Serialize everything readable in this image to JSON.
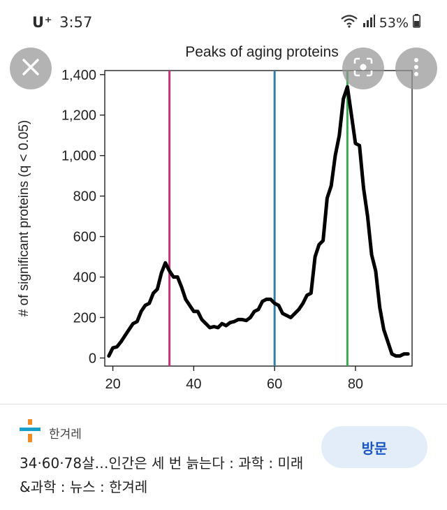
{
  "status_bar": {
    "carrier": "U⁺",
    "time": "3:57",
    "battery": "53%"
  },
  "icons": {
    "close": "close-icon",
    "lens": "lens-search-icon",
    "more": "more-vert-icon",
    "wifi": "wifi-icon",
    "signal": "signal-icon",
    "battery": "battery-icon",
    "source_logo": "hani-logo-icon"
  },
  "source": {
    "name": "한겨레"
  },
  "article": {
    "title": "34·60·78살…인간은 세 번 늙는다 : 과학 : 미래&과학 : 뉴스 : 한겨레"
  },
  "visit_button": {
    "label": "방문"
  },
  "colors": {
    "magenta_line": "#c4317f",
    "blue_line": "#2f7fa8",
    "green_line": "#3aa850",
    "visit_bg": "#e3ecf9",
    "visit_text": "#1a56c4"
  },
  "chart_data": {
    "type": "line",
    "title": "Peaks of aging proteins",
    "xlabel": "",
    "ylabel": "# of significant proteins (q < 0.05)",
    "xlim": [
      18,
      94
    ],
    "ylim": [
      -40,
      1420
    ],
    "xticks": [
      20,
      40,
      60,
      80
    ],
    "yticks": [
      0,
      200,
      400,
      600,
      800,
      1000,
      1200,
      1400
    ],
    "ytick_labels": [
      "0",
      "200",
      "400",
      "600",
      "800",
      "1,000",
      "1,200",
      "1,400"
    ],
    "vlines": [
      {
        "x": 34,
        "color": "#c4317f"
      },
      {
        "x": 60,
        "color": "#2f7fa8"
      },
      {
        "x": 78,
        "color": "#3aa850"
      }
    ],
    "series": [
      {
        "x": [
          19,
          20,
          21,
          22,
          23,
          24,
          25,
          26,
          27,
          28,
          29,
          30,
          31,
          32,
          33,
          34,
          35,
          36,
          37,
          38,
          39,
          40,
          41,
          42,
          43,
          44,
          45,
          46,
          47,
          48,
          49,
          50,
          51,
          52,
          53,
          54,
          55,
          56,
          57,
          58,
          59,
          60,
          61,
          62,
          63,
          64,
          65,
          66,
          67,
          68,
          69,
          70,
          71,
          72,
          73,
          74,
          75,
          76,
          77,
          78,
          79,
          80,
          81,
          82,
          83,
          84,
          85,
          86,
          87,
          88,
          89,
          90,
          91,
          92,
          93
        ],
        "values": [
          10,
          50,
          55,
          80,
          110,
          140,
          170,
          180,
          230,
          260,
          270,
          320,
          340,
          420,
          470,
          430,
          400,
          400,
          350,
          290,
          260,
          230,
          230,
          190,
          170,
          150,
          155,
          150,
          170,
          160,
          175,
          180,
          190,
          190,
          185,
          200,
          230,
          240,
          280,
          290,
          290,
          270,
          260,
          220,
          210,
          200,
          220,
          240,
          270,
          310,
          320,
          500,
          560,
          580,
          790,
          850,
          1000,
          1100,
          1280,
          1340,
          1200,
          1060,
          1050,
          840,
          700,
          510,
          430,
          250,
          140,
          80,
          20,
          10,
          10,
          20,
          20
        ]
      }
    ]
  }
}
